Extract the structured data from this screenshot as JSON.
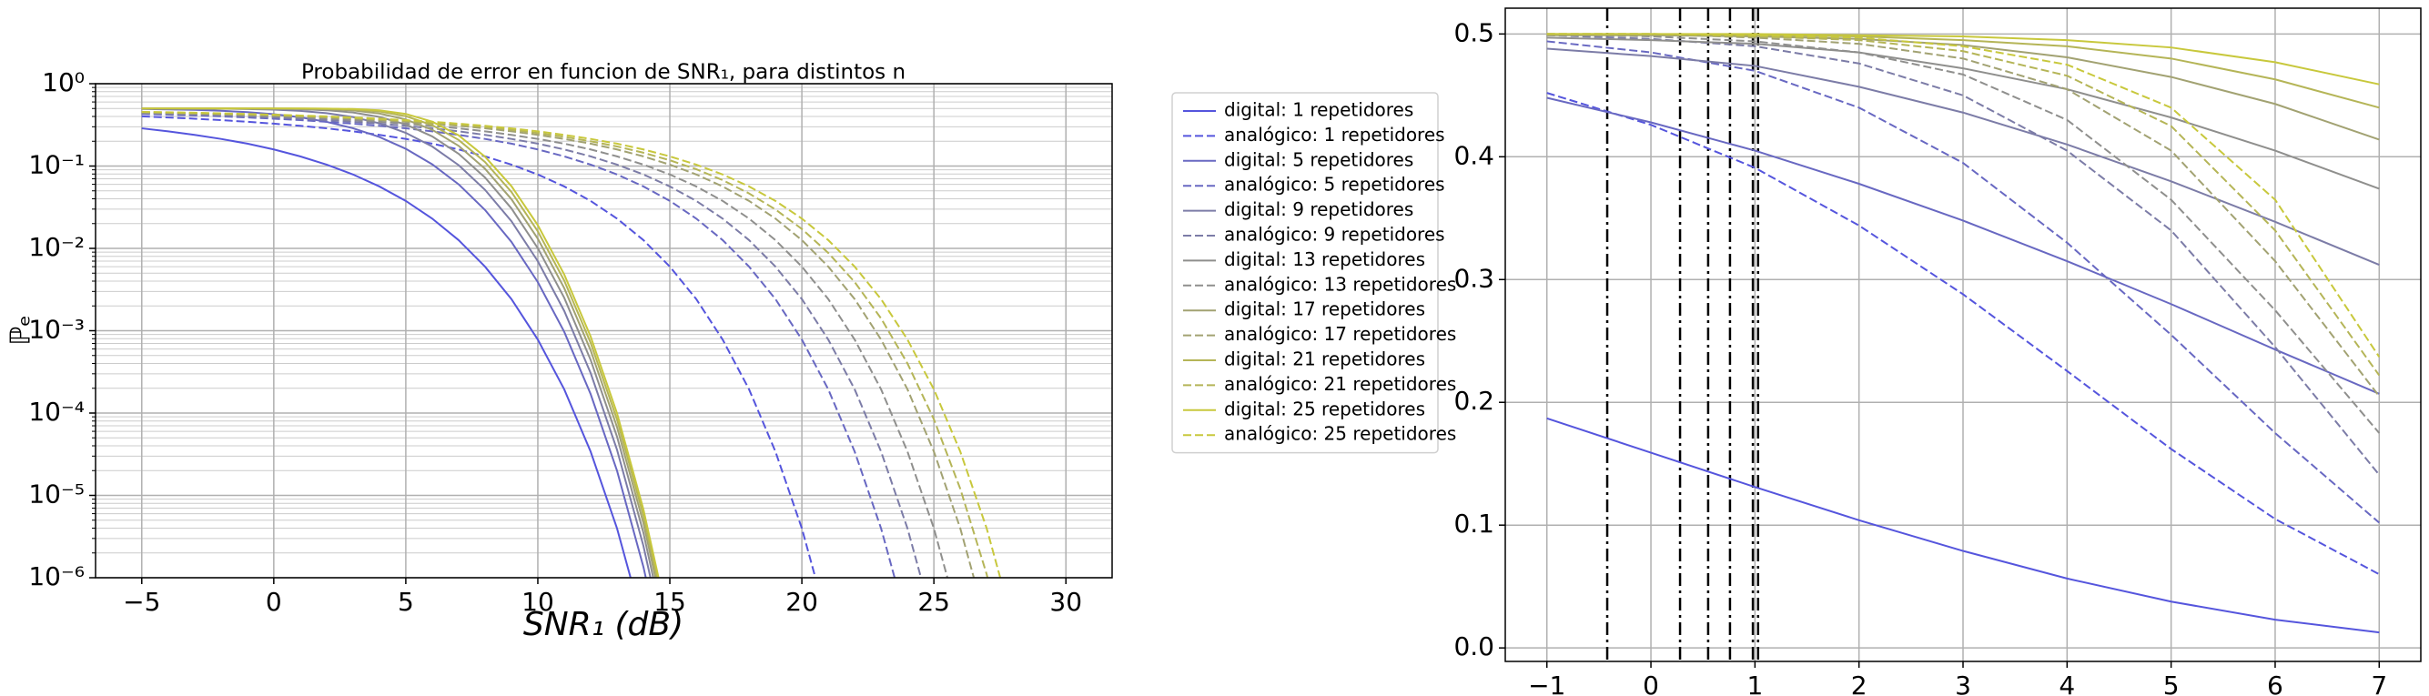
{
  "chart_data": [
    {
      "type": "line",
      "title": "Probabilidad de error en funcion de SNR₁, para distintos n",
      "xlabel": "SNR₁ (dB)",
      "ylabel": "ℙₑ",
      "log_y": true,
      "minor_grid": true,
      "grid": true,
      "legend": "outside right",
      "xlim": [
        -6.75,
        31.75
      ],
      "ylim": [
        1e-06,
        1
      ],
      "xticks": [
        {
          "value": -5,
          "label": "−5"
        },
        0,
        5,
        10,
        15,
        20,
        25,
        30
      ],
      "yticks": [
        {
          "value": 1,
          "label": "10⁰"
        },
        {
          "value": 0.1,
          "label": "10⁻¹"
        },
        {
          "value": 0.01,
          "label": "10⁻²"
        },
        {
          "value": 0.001,
          "label": "10⁻³"
        },
        {
          "value": 0.0001,
          "label": "10⁻⁴"
        },
        {
          "value": 1e-05,
          "label": "10⁻⁵"
        },
        {
          "value": 1e-06,
          "label": "10⁻⁶"
        }
      ],
      "x": [
        -5,
        -4,
        -3,
        -2,
        -1,
        0,
        1,
        2,
        3,
        4,
        5,
        6,
        7,
        8,
        9,
        10,
        11,
        12,
        13,
        14,
        15,
        16,
        17,
        18,
        19,
        20,
        21,
        22,
        23,
        24,
        25,
        26,
        27,
        28,
        29,
        30
      ],
      "series": [
        {
          "name": "digital: 1 repetidores",
          "color": "#5555dd",
          "linestyle": "solid",
          "values": [
            0.287,
            0.264,
            0.239,
            0.2135,
            0.187,
            0.159,
            0.131,
            0.104,
            0.079,
            0.0565,
            0.0377,
            0.023,
            0.0126,
            0.006,
            0.00242,
            0.00078,
            0.000194,
            3.4e-05,
            3.97e-06,
            2.7e-07,
            null,
            null,
            null,
            null,
            null,
            null,
            null,
            null,
            null,
            null,
            null,
            null,
            null,
            null,
            null,
            null
          ]
        },
        {
          "name": "analógico: 1 repetidores",
          "color": "#5555dd",
          "linestyle": "dashed",
          "values": [
            0.401,
            0.389,
            0.376,
            0.361,
            0.345,
            0.327,
            0.308,
            0.287,
            0.264,
            0.239,
            0.2135,
            0.187,
            0.159,
            0.131,
            0.104,
            0.079,
            0.0565,
            0.0377,
            0.023,
            0.0126,
            0.006,
            0.00242,
            0.00078,
            0.000194,
            3.4e-05,
            3.97e-06,
            2.7e-07,
            null,
            null,
            null,
            null,
            null,
            null,
            null,
            null,
            null
          ]
        },
        {
          "name": "digital: 5 repetidores",
          "color": "#6868c2",
          "linestyle": "solid",
          "values": [
            0.493,
            0.488,
            0.481,
            0.469,
            0.452,
            0.426,
            0.391,
            0.344,
            0.288,
            0.2255,
            0.162,
            0.105,
            0.06,
            0.0293,
            0.01199,
            0.00389,
            0.00097,
            0.00017,
            1.99e-05,
            1.35e-06,
            4.8e-08,
            null,
            null,
            null,
            null,
            null,
            null,
            null,
            null,
            null,
            null,
            null,
            null,
            null,
            null,
            null
          ]
        },
        {
          "name": "analógico: 5 repetidores",
          "color": "#6868c2",
          "linestyle": "dashed",
          "values": [
            0.429,
            0.421,
            0.411,
            0.401,
            0.389,
            0.376,
            0.361,
            0.345,
            0.327,
            0.308,
            0.287,
            0.264,
            0.239,
            0.2135,
            0.187,
            0.159,
            0.131,
            0.104,
            0.079,
            0.0565,
            0.0377,
            0.023,
            0.0126,
            0.006,
            0.00242,
            0.00078,
            0.000194,
            3.4e-05,
            3.97e-06,
            2.7e-07,
            null,
            null,
            null,
            null,
            null,
            null
          ]
        },
        {
          "name": "digital: 9 repetidores",
          "color": "#7c7ca7",
          "linestyle": "solid",
          "values": [
            0.5,
            0.4994,
            0.4986,
            0.4967,
            0.4926,
            0.4841,
            0.4676,
            0.4386,
            0.3937,
            0.33,
            0.253,
            0.1728,
            0.1026,
            0.0514,
            0.0214,
            0.00698,
            0.00174,
            0.000306,
            3.57e-05,
            2.43e-06,
            8.6e-08,
            null,
            null,
            null,
            null,
            null,
            null,
            null,
            null,
            null,
            null,
            null,
            null,
            null,
            null,
            null
          ]
        },
        {
          "name": "analógico: 9 repetidores",
          "color": "#7c7ca7",
          "linestyle": "dashed",
          "values": [
            0.437,
            0.429,
            0.421,
            0.411,
            0.401,
            0.389,
            0.376,
            0.361,
            0.345,
            0.327,
            0.308,
            0.287,
            0.264,
            0.239,
            0.2135,
            0.187,
            0.159,
            0.131,
            0.104,
            0.079,
            0.0565,
            0.0377,
            0.023,
            0.0126,
            0.006,
            0.00242,
            0.00078,
            0.000194,
            3.4e-05,
            3.97e-06,
            2.7e-07,
            null,
            null,
            null,
            null,
            null
          ]
        },
        {
          "name": "digital: 13 repetidores",
          "color": "#8f8f8d",
          "linestyle": "solid",
          "values": [
            0.5,
            0.5,
            0.4999,
            0.4996,
            0.4989,
            0.4966,
            0.4904,
            0.4758,
            0.4466,
            0.395,
            0.3195,
            0.229,
            0.141,
            0.0726,
            0.0306,
            0.01004,
            0.00251,
            0.000442,
            5.16e-05,
            3.5e-06,
            1.2e-07,
            null,
            null,
            null,
            null,
            null,
            null,
            null,
            null,
            null,
            null,
            null,
            null,
            null,
            null,
            null
          ]
        },
        {
          "name": "analógico: 13 repetidores",
          "color": "#8f8f8d",
          "linestyle": "dashed",
          "values": [
            0.444,
            0.437,
            0.429,
            0.421,
            0.411,
            0.401,
            0.389,
            0.376,
            0.361,
            0.345,
            0.327,
            0.308,
            0.287,
            0.264,
            0.239,
            0.2135,
            0.187,
            0.159,
            0.131,
            0.104,
            0.079,
            0.0565,
            0.0377,
            0.023,
            0.0126,
            0.006,
            0.00242,
            0.00078,
            0.000194,
            3.4e-05,
            3.97e-06,
            2.7e-07,
            null,
            null,
            null,
            null
          ]
        },
        {
          "name": "digital: 17 repetidores",
          "color": "#a2a272",
          "linestyle": "solid",
          "values": [
            0.5,
            0.5,
            0.5,
            0.5,
            0.4998,
            0.4993,
            0.4972,
            0.4905,
            0.4732,
            0.435,
            0.368,
            0.2755,
            0.176,
            0.0928,
            0.0396,
            0.0131,
            0.00329,
            0.000578,
            6.75e-05,
            4.6e-06,
            1.6e-07,
            null,
            null,
            null,
            null,
            null,
            null,
            null,
            null,
            null,
            null,
            null,
            null,
            null,
            null,
            null
          ]
        },
        {
          "name": "analógico: 17 repetidores",
          "color": "#a2a272",
          "linestyle": "dashed",
          "values": [
            0.45,
            0.444,
            0.437,
            0.429,
            0.421,
            0.411,
            0.401,
            0.389,
            0.376,
            0.361,
            0.345,
            0.327,
            0.308,
            0.287,
            0.264,
            0.239,
            0.2135,
            0.187,
            0.159,
            0.131,
            0.104,
            0.079,
            0.0565,
            0.0377,
            0.023,
            0.0126,
            0.006,
            0.00242,
            0.00078,
            0.000194,
            3.4e-05,
            3.97e-06,
            2.7e-07,
            null,
            null,
            null
          ]
        },
        {
          "name": "digital: 21 repetidores",
          "color": "#b5b557",
          "linestyle": "solid",
          "values": [
            0.5,
            0.5,
            0.5,
            0.5,
            0.5,
            0.4998,
            0.4992,
            0.4962,
            0.4865,
            0.4598,
            0.4036,
            0.314,
            0.2075,
            0.112,
            0.0485,
            0.0161,
            0.00406,
            0.000714,
            8.34e-05,
            5.67e-06,
            2e-07,
            null,
            null,
            null,
            null,
            null,
            null,
            null,
            null,
            null,
            null,
            null,
            null,
            null,
            null,
            null
          ]
        },
        {
          "name": "analógico: 21 repetidores",
          "color": "#b5b557",
          "linestyle": "dashed",
          "values": [
            0.4525,
            0.447,
            0.4405,
            0.433,
            0.425,
            0.416,
            0.406,
            0.395,
            0.3825,
            0.3685,
            0.353,
            0.336,
            0.3175,
            0.2975,
            0.2755,
            0.2515,
            0.2265,
            0.2,
            0.173,
            0.145,
            0.1175,
            0.0915,
            0.0675,
            0.0465,
            0.0297,
            0.0172,
            0.0088,
            0.0039,
            0.00141,
            0.0004,
            8.4e-05,
            1.2e-05,
            1.1e-06,
            5e-08,
            null,
            null
          ]
        },
        {
          "name": "digital: 25 repetidores",
          "color": "#c8c83c",
          "linestyle": "solid",
          "values": [
            0.5,
            0.5,
            0.5,
            0.5,
            0.5,
            0.5,
            0.4998,
            0.4985,
            0.4932,
            0.4751,
            0.4296,
            0.346,
            0.236,
            0.13,
            0.0571,
            0.0191,
            0.00482,
            0.00085,
            9.93e-05,
            6.75e-06,
            2.4e-07,
            null,
            null,
            null,
            null,
            null,
            null,
            null,
            null,
            null,
            null,
            null,
            null,
            null,
            null,
            null
          ]
        },
        {
          "name": "analógico: 25 repetidores",
          "color": "#c8c83c",
          "linestyle": "dashed",
          "values": [
            0.455,
            0.45,
            0.444,
            0.437,
            0.429,
            0.421,
            0.411,
            0.401,
            0.389,
            0.376,
            0.361,
            0.345,
            0.327,
            0.308,
            0.287,
            0.264,
            0.239,
            0.2135,
            0.187,
            0.159,
            0.131,
            0.104,
            0.079,
            0.0565,
            0.0377,
            0.023,
            0.0126,
            0.006,
            0.00242,
            0.00078,
            0.000194,
            3.4e-05,
            3.97e-06,
            2.7e-07,
            null,
            null
          ]
        }
      ]
    },
    {
      "type": "line",
      "grid": true,
      "xlim": [
        -1.4,
        7.4
      ],
      "ylim": [
        -0.011,
        0.521
      ],
      "xticks": [
        {
          "value": -1,
          "label": "−1"
        },
        0,
        1,
        2,
        3,
        4,
        5,
        6,
        7
      ],
      "yticks": [
        {
          "value": 0,
          "label": "0.0"
        },
        0.1,
        0.2,
        0.3,
        0.4,
        0.5
      ],
      "x": [
        -1,
        0,
        1,
        2,
        3,
        4,
        5,
        6,
        7
      ],
      "vlines": [
        -0.42,
        0.28,
        0.55,
        0.76,
        0.98,
        1.03
      ],
      "vline_color": "#000000",
      "series": [
        {
          "color": "#5555dd",
          "linestyle": "solid",
          "values": [
            0.187,
            0.159,
            0.131,
            0.104,
            0.079,
            0.0565,
            0.0377,
            0.023,
            0.0126
          ]
        },
        {
          "color": "#5555dd",
          "linestyle": "dashed",
          "values": [
            0.452,
            0.426,
            0.391,
            0.344,
            0.288,
            0.2255,
            0.162,
            0.105,
            0.06
          ]
        },
        {
          "color": "#6868c2",
          "linestyle": "solid",
          "values": [
            0.448,
            0.428,
            0.405,
            0.378,
            0.348,
            0.315,
            0.28,
            0.243,
            0.207
          ]
        },
        {
          "color": "#6868c2",
          "linestyle": "dashed",
          "values": [
            0.494,
            0.485,
            0.47,
            0.44,
            0.395,
            0.33,
            0.255,
            0.175,
            0.102
          ]
        },
        {
          "color": "#7c7ca7",
          "linestyle": "solid",
          "values": [
            0.488,
            0.482,
            0.474,
            0.457,
            0.436,
            0.41,
            0.38,
            0.347,
            0.312
          ]
        },
        {
          "color": "#7c7ca7",
          "linestyle": "dashed",
          "values": [
            0.499,
            0.496,
            0.49,
            0.476,
            0.45,
            0.405,
            0.34,
            0.245,
            0.141
          ]
        },
        {
          "color": "#8f8f8d",
          "linestyle": "solid",
          "values": [
            0.497,
            0.495,
            0.492,
            0.485,
            0.472,
            0.455,
            0.432,
            0.405,
            0.374
          ]
        },
        {
          "color": "#8f8f8d",
          "linestyle": "dashed",
          "values": [
            0.5,
            0.498,
            0.494,
            0.485,
            0.467,
            0.43,
            0.365,
            0.275,
            0.175
          ]
        },
        {
          "color": "#a2a272",
          "linestyle": "solid",
          "values": [
            0.499,
            0.499,
            0.498,
            0.496,
            0.491,
            0.481,
            0.465,
            0.443,
            0.414
          ]
        },
        {
          "color": "#a2a272",
          "linestyle": "dashed",
          "values": [
            0.5,
            0.5,
            0.497,
            0.492,
            0.48,
            0.455,
            0.405,
            0.315,
            0.205
          ]
        },
        {
          "color": "#b5b557",
          "linestyle": "solid",
          "values": [
            0.5,
            0.5,
            0.499,
            0.498,
            0.495,
            0.49,
            0.48,
            0.463,
            0.44
          ]
        },
        {
          "color": "#b5b557",
          "linestyle": "dashed",
          "values": [
            0.5,
            0.5,
            0.498,
            0.495,
            0.486,
            0.466,
            0.425,
            0.34,
            0.222
          ]
        },
        {
          "color": "#c8c83c",
          "linestyle": "solid",
          "values": [
            0.5,
            0.5,
            0.5,
            0.499,
            0.498,
            0.495,
            0.489,
            0.477,
            0.459
          ]
        },
        {
          "color": "#c8c83c",
          "linestyle": "dashed",
          "values": [
            0.5,
            0.5,
            0.499,
            0.497,
            0.49,
            0.475,
            0.44,
            0.365,
            0.237
          ]
        }
      ]
    }
  ]
}
